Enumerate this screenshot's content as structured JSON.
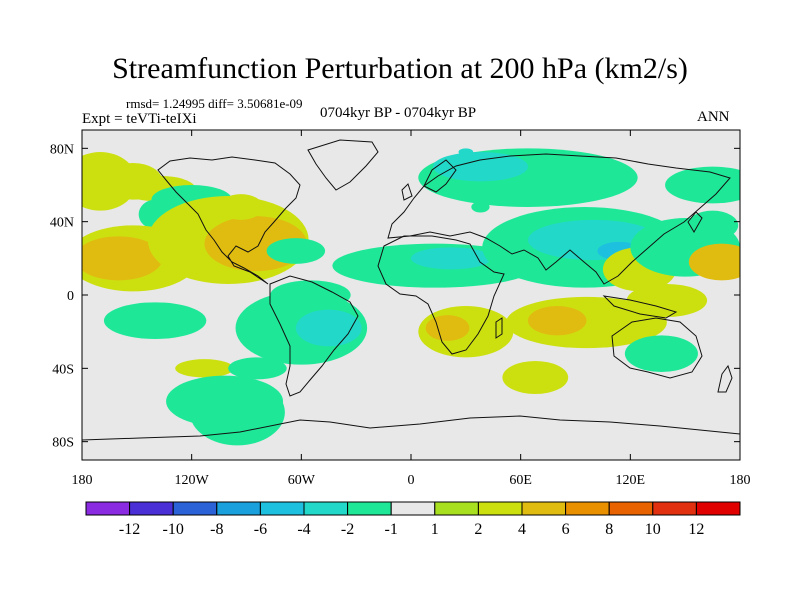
{
  "chart_data": {
    "type": "heatmap",
    "title": "Streamfunction Perturbation at 200 hPa (km2/s)",
    "stats_text": "rmsd= 1.24995 diff= 3.50681e-09",
    "experiment_text": "Expt = teVTi-teIXi",
    "period_text": "0704kyr BP - 0704kyr BP",
    "season_text": "ANN",
    "x_ticks": [
      "180",
      "120W",
      "60W",
      "0",
      "60E",
      "120E",
      "180"
    ],
    "y_ticks": [
      "80N",
      "40N",
      "0",
      "40S",
      "80S"
    ],
    "xlim": [
      -180,
      180
    ],
    "ylim": [
      -90,
      90
    ],
    "colorbar": {
      "labels": [
        "-12",
        "-10",
        "-8",
        "-6",
        "-4",
        "-2",
        "-1",
        "1",
        "2",
        "4",
        "6",
        "8",
        "10",
        "12"
      ],
      "colors": [
        "#8a2be2",
        "#4b2fd6",
        "#2b62d8",
        "#1aa0dc",
        "#1ec0e0",
        "#22d8c8",
        "#1ee898",
        "#e8e8e8",
        "#a8e020",
        "#cce010",
        "#e0bc10",
        "#e89000",
        "#e86200",
        "#e03010",
        "#e00000"
      ]
    },
    "fields": [
      {
        "lon": -170,
        "lat": 62,
        "rx": 20,
        "ry": 16,
        "level": "2"
      },
      {
        "lon": -152,
        "lat": 62,
        "rx": 16,
        "ry": 10,
        "level": "2"
      },
      {
        "lon": -138,
        "lat": 58,
        "rx": 20,
        "ry": 7,
        "level": "2"
      },
      {
        "lon": -120,
        "lat": 52,
        "rx": 22,
        "ry": 8,
        "level": "-1"
      },
      {
        "lon": -140,
        "lat": 44,
        "rx": 9,
        "ry": 8,
        "level": "-1"
      },
      {
        "lon": -152,
        "lat": 20,
        "rx": 36,
        "ry": 18,
        "level": "2"
      },
      {
        "lon": -160,
        "lat": 20,
        "rx": 24,
        "ry": 12,
        "level": "4"
      },
      {
        "lon": -100,
        "lat": 30,
        "rx": 44,
        "ry": 24,
        "level": "2"
      },
      {
        "lon": -85,
        "lat": 28,
        "rx": 28,
        "ry": 15,
        "level": "4"
      },
      {
        "lon": -93,
        "lat": 48,
        "rx": 12,
        "ry": 7,
        "level": "2"
      },
      {
        "lon": -63,
        "lat": 24,
        "rx": 16,
        "ry": 7,
        "level": "-1"
      },
      {
        "lon": -140,
        "lat": -14,
        "rx": 28,
        "ry": 10,
        "level": "-1"
      },
      {
        "lon": -113,
        "lat": -40,
        "rx": 16,
        "ry": 5,
        "level": "2"
      },
      {
        "lon": -84,
        "lat": -40,
        "rx": 16,
        "ry": 6,
        "level": "-1"
      },
      {
        "lon": -102,
        "lat": -58,
        "rx": 32,
        "ry": 14,
        "level": "-1"
      },
      {
        "lon": -95,
        "lat": -64,
        "rx": 26,
        "ry": 18,
        "level": "-1"
      },
      {
        "lon": -60,
        "lat": -18,
        "rx": 36,
        "ry": 20,
        "level": "-1"
      },
      {
        "lon": -55,
        "lat": 0,
        "rx": 22,
        "ry": 8,
        "level": "-1"
      },
      {
        "lon": -45,
        "lat": -18,
        "rx": 18,
        "ry": 10,
        "level": "-2"
      },
      {
        "lon": 13,
        "lat": 16,
        "rx": 56,
        "ry": 12,
        "level": "-1"
      },
      {
        "lon": 22,
        "lat": 20,
        "rx": 22,
        "ry": 6,
        "level": "-2"
      },
      {
        "lon": 30,
        "lat": -20,
        "rx": 26,
        "ry": 14,
        "level": "2"
      },
      {
        "lon": 20,
        "lat": -18,
        "rx": 12,
        "ry": 7,
        "level": "4"
      },
      {
        "lon": 64,
        "lat": 64,
        "rx": 60,
        "ry": 16,
        "level": "-1"
      },
      {
        "lon": 38,
        "lat": 70,
        "rx": 26,
        "ry": 8,
        "level": "-2"
      },
      {
        "lon": 95,
        "lat": 26,
        "rx": 56,
        "ry": 22,
        "level": "-1"
      },
      {
        "lon": 100,
        "lat": 30,
        "rx": 36,
        "ry": 11,
        "level": "-2"
      },
      {
        "lon": 114,
        "lat": 24,
        "rx": 12,
        "ry": 5,
        "level": "-4"
      },
      {
        "lon": 68,
        "lat": -45,
        "rx": 18,
        "ry": 9,
        "level": "2"
      },
      {
        "lon": 96,
        "lat": -15,
        "rx": 44,
        "ry": 14,
        "level": "2"
      },
      {
        "lon": 80,
        "lat": -14,
        "rx": 16,
        "ry": 8,
        "level": "4"
      },
      {
        "lon": 125,
        "lat": 14,
        "rx": 20,
        "ry": 12,
        "level": "2"
      },
      {
        "lon": 140,
        "lat": -3,
        "rx": 22,
        "ry": 9,
        "level": "2"
      },
      {
        "lon": 137,
        "lat": -32,
        "rx": 20,
        "ry": 10,
        "level": "-1"
      },
      {
        "lon": 150,
        "lat": 26,
        "rx": 30,
        "ry": 16,
        "level": "-1"
      },
      {
        "lon": 165,
        "lat": 60,
        "rx": 26,
        "ry": 10,
        "level": "-1"
      },
      {
        "lon": 165,
        "lat": 38,
        "rx": 14,
        "ry": 8,
        "level": "-1"
      },
      {
        "lon": 170,
        "lat": 18,
        "rx": 18,
        "ry": 10,
        "level": "4"
      },
      {
        "lon": 30,
        "lat": 78,
        "rx": 4,
        "ry": 2,
        "level": "-2"
      },
      {
        "lon": 38,
        "lat": 48,
        "rx": 5,
        "ry": 3,
        "level": "-1"
      }
    ]
  }
}
